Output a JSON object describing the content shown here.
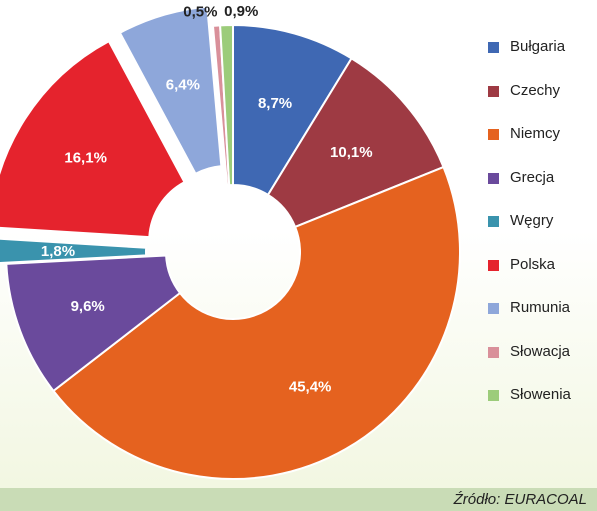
{
  "chart_data": {
    "type": "pie",
    "title": "",
    "slices": [
      {
        "label": "Bułgaria",
        "value": 8.7,
        "value_label": "8,7%",
        "color": "#3f68b3",
        "exploded": false
      },
      {
        "label": "Czechy",
        "value": 10.1,
        "value_label": "10,1%",
        "color": "#9e3a43",
        "exploded": false
      },
      {
        "label": "Niemcy",
        "value": 45.4,
        "value_label": "45,4%",
        "color": "#e5621f",
        "exploded": false
      },
      {
        "label": "Grecja",
        "value": 9.6,
        "value_label": "9,6%",
        "color": "#6a4a9c",
        "exploded": false
      },
      {
        "label": "Węgry",
        "value": 1.8,
        "value_label": "1,8%",
        "color": "#3a93ad",
        "exploded": true
      },
      {
        "label": "Polska",
        "value": 16.1,
        "value_label": "16,1%",
        "color": "#e5232d",
        "exploded": true
      },
      {
        "label": "Rumunia",
        "value": 6.4,
        "value_label": "6,4%",
        "color": "#8ea7da",
        "exploded": true
      },
      {
        "label": "Słowacja",
        "value": 0.5,
        "value_label": "0,5%",
        "color": "#d9909a",
        "exploded": false
      },
      {
        "label": "Słowenia",
        "value": 0.9,
        "value_label": "0,9%",
        "color": "#9ccc7a",
        "exploded": false
      }
    ],
    "legend_position": "right"
  },
  "source": "Źródło: EURACOAL"
}
